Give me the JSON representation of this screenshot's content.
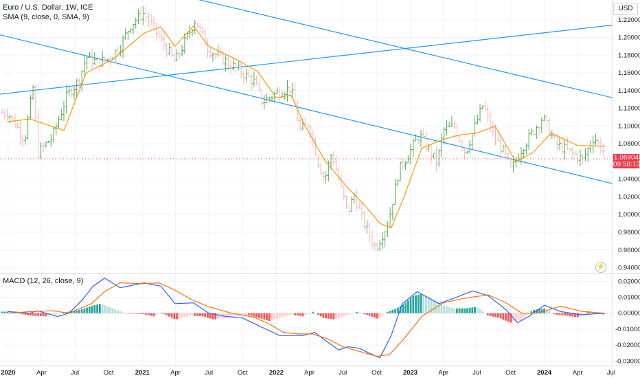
{
  "legend": {
    "symbol": "Euro / U.S. Dollar, 1W, ICE",
    "sma": "SMA (9, close, 0, SMA, 9)",
    "macd": "MACD (12, 26, close, 9)"
  },
  "price_axis": {
    "currency": "USD",
    "last_price": "1.06904",
    "countdown": "09:58:13"
  },
  "colors": {
    "up": "#26a69a",
    "up_bar": "#4caf50",
    "down": "#f7525f",
    "down_light": "#f8b4bb",
    "sma": "#ff9800",
    "trendline": "#2196f3",
    "macd_line": "#2962ff",
    "signal_line": "#ff6d00",
    "hist_up_strong": "#26a69a",
    "hist_up_weak": "#b2dfdb",
    "hist_down_strong": "#ff5252",
    "hist_down_weak": "#ffcdd2",
    "grid": "#f0f3fa",
    "price_tag": "#f23645"
  },
  "icons": {
    "alert": "lightning-icon"
  },
  "chart_data": [
    {
      "type": "ohlc",
      "title": "Euro / U.S. Dollar, 1W, ICE",
      "x_tick_labels": [
        "2020",
        "Apr",
        "Jul",
        "Oct",
        "2021",
        "Apr",
        "Jul",
        "Oct",
        "2022",
        "Apr",
        "Jul",
        "Oct",
        "2023",
        "Apr",
        "Jul",
        "Oct",
        "2024",
        "Apr",
        "Jul"
      ],
      "y_tick_labels": [
        "1.22000",
        "1.20000",
        "1.18000",
        "1.16000",
        "1.14000",
        "1.12000",
        "1.10000",
        "1.08000",
        "1.06000",
        "1.04000",
        "1.02000",
        "1.00000",
        "0.98000",
        "0.96000",
        "0.94000"
      ],
      "ylim": [
        0.935,
        1.24
      ],
      "series": [
        {
          "kind": "weekly_close",
          "x": [
            "2020-01-01",
            "2020-02-15",
            "2020-03-09",
            "2020-03-23",
            "2020-05-01",
            "2020-06-10",
            "2020-07-10",
            "2020-08-01",
            "2020-09-01",
            "2020-10-01",
            "2020-11-01",
            "2020-12-01",
            "2021-01-06",
            "2021-02-01",
            "2021-03-31",
            "2021-05-25",
            "2021-07-01",
            "2021-08-20",
            "2021-10-01",
            "2021-11-01",
            "2021-11-24",
            "2021-12-31",
            "2022-02-10",
            "2022-03-07",
            "2022-03-31",
            "2022-04-28",
            "2022-05-13",
            "2022-06-01",
            "2022-07-14",
            "2022-08-01",
            "2022-08-23",
            "2022-09-28",
            "2022-11-01",
            "2022-12-01",
            "2023-01-26",
            "2023-03-15",
            "2023-04-01",
            "2023-05-01",
            "2023-05-31",
            "2023-07-18",
            "2023-08-15",
            "2023-09-15",
            "2023-10-03",
            "2023-11-01",
            "2023-12-28",
            "2024-02-01",
            "2024-04-16",
            "2024-05-15",
            "2024-06-14"
          ],
          "y": [
            1.115,
            1.085,
            1.143,
            1.07,
            1.088,
            1.135,
            1.15,
            1.178,
            1.172,
            1.176,
            1.19,
            1.215,
            1.228,
            1.21,
            1.172,
            1.22,
            1.186,
            1.172,
            1.16,
            1.15,
            1.127,
            1.137,
            1.143,
            1.095,
            1.103,
            1.055,
            1.04,
            1.07,
            1.002,
            1.022,
            0.995,
            0.962,
            0.99,
            1.05,
            1.09,
            1.058,
            1.095,
            1.1,
            1.07,
            1.124,
            1.09,
            1.068,
            1.05,
            1.075,
            1.11,
            1.08,
            1.062,
            1.088,
            1.069
          ]
        },
        {
          "name": "SMA (9, close, 0, SMA, 9)",
          "x": [
            "2020-01-01",
            "2020-03-01",
            "2020-06-01",
            "2020-08-01",
            "2020-10-15",
            "2021-01-06",
            "2021-02-20",
            "2021-03-31",
            "2021-05-20",
            "2021-07-01",
            "2021-09-01",
            "2021-11-10",
            "2022-01-01",
            "2022-02-10",
            "2022-03-20",
            "2022-05-15",
            "2022-07-15",
            "2022-08-31",
            "2022-10-10",
            "2022-11-10",
            "2022-12-15",
            "2023-02-01",
            "2023-04-01",
            "2023-05-15",
            "2023-07-01",
            "2023-08-20",
            "2023-10-15",
            "2023-12-01",
            "2024-01-20",
            "2024-04-01",
            "2024-06-14"
          ],
          "y": [
            1.105,
            1.108,
            1.095,
            1.16,
            1.176,
            1.205,
            1.212,
            1.19,
            1.213,
            1.19,
            1.178,
            1.162,
            1.132,
            1.135,
            1.1,
            1.06,
            1.03,
            1.01,
            0.99,
            0.985,
            1.02,
            1.075,
            1.085,
            1.09,
            1.092,
            1.1,
            1.06,
            1.07,
            1.092,
            1.078,
            1.077
          ]
        }
      ],
      "trendlines": [
        {
          "from": [
            "2019-12-10",
            1.136
          ],
          "to": [
            "2024-07-05",
            1.214
          ]
        },
        {
          "from": [
            "2020-05-20",
            1.28
          ],
          "to": [
            "2024-07-05",
            1.132
          ]
        },
        {
          "from": [
            "2019-12-10",
            1.203
          ],
          "to": [
            "2024-07-05",
            1.035
          ]
        }
      ]
    },
    {
      "type": "bar",
      "title": "MACD (12, 26, close, 9)",
      "y_tick_labels": [
        "0.02000",
        "0.01000",
        "0.00000",
        "-0.01000",
        "-0.02000",
        "-0.03000"
      ],
      "ylim": [
        -0.032,
        0.024
      ],
      "series": [
        {
          "name": "MACD",
          "x": [
            "2020-01-01",
            "2020-03-01",
            "2020-03-20",
            "2020-05-15",
            "2020-06-15",
            "2020-07-20",
            "2020-08-20",
            "2020-09-20",
            "2020-11-01",
            "2021-01-06",
            "2021-02-20",
            "2021-03-31",
            "2021-05-20",
            "2021-07-01",
            "2021-08-15",
            "2021-10-01",
            "2021-11-15",
            "2022-01-10",
            "2022-03-15",
            "2022-04-15",
            "2022-05-20",
            "2022-06-20",
            "2022-07-15",
            "2022-08-15",
            "2022-09-20",
            "2022-10-10",
            "2022-11-10",
            "2022-12-10",
            "2023-01-20",
            "2023-03-20",
            "2023-05-01",
            "2023-06-20",
            "2023-08-01",
            "2023-09-20",
            "2023-10-20",
            "2023-11-20",
            "2024-01-01",
            "2024-02-15",
            "2024-04-10",
            "2024-06-14"
          ],
          "y": [
            0.001,
            0.0,
            0.0015,
            -0.002,
            0.0,
            0.008,
            0.017,
            0.022,
            0.016,
            0.019,
            0.017,
            0.006,
            0.0065,
            0.0,
            -0.002,
            -0.003,
            -0.008,
            -0.014,
            -0.014,
            -0.012,
            -0.018,
            -0.023,
            -0.021,
            -0.022,
            -0.026,
            -0.028,
            -0.014,
            0.006,
            0.0135,
            0.006,
            0.0095,
            0.014,
            0.011,
            0.002,
            -0.006,
            -0.002,
            0.005,
            0.001,
            -0.001,
            0.0
          ]
        },
        {
          "name": "Signal",
          "x": [
            "2020-01-01",
            "2020-03-01",
            "2020-05-01",
            "2020-06-15",
            "2020-08-15",
            "2020-09-20",
            "2020-11-01",
            "2021-01-01",
            "2021-02-15",
            "2021-03-31",
            "2021-05-15",
            "2021-07-01",
            "2021-09-01",
            "2021-11-01",
            "2021-12-15",
            "2022-01-20",
            "2022-03-01",
            "2022-04-10",
            "2022-05-20",
            "2022-07-01",
            "2022-08-01",
            "2022-09-01",
            "2022-10-01",
            "2022-11-05",
            "2022-12-15",
            "2023-02-01",
            "2023-04-01",
            "2023-06-01",
            "2023-08-01",
            "2023-09-15",
            "2023-11-01",
            "2023-12-15",
            "2024-02-15",
            "2024-04-15",
            "2024-06-14"
          ],
          "y": [
            0.0,
            0.001,
            0.0015,
            0.0,
            0.006,
            0.0135,
            0.019,
            0.0185,
            0.019,
            0.0145,
            0.0085,
            0.004,
            0.0,
            -0.0025,
            -0.007,
            -0.012,
            -0.013,
            -0.013,
            -0.016,
            -0.021,
            -0.023,
            -0.025,
            -0.027,
            -0.026,
            -0.016,
            -0.002,
            0.0065,
            0.0095,
            0.0115,
            0.007,
            0.0,
            0.0,
            0.0045,
            0.001,
            0.0
          ]
        },
        {
          "name": "Histogram",
          "x": [
            "2020-01-01",
            "2020-03-01",
            "2020-04-15",
            "2020-06-01",
            "2020-07-15",
            "2020-08-15",
            "2020-09-10",
            "2020-10-01",
            "2020-11-15",
            "2021-01-01",
            "2021-02-01",
            "2021-02-20",
            "2021-04-01",
            "2021-05-15",
            "2021-06-15",
            "2021-07-15",
            "2021-08-15",
            "2021-09-15",
            "2021-10-15",
            "2021-11-15",
            "2021-12-15",
            "2022-01-15",
            "2022-02-15",
            "2022-03-15",
            "2022-04-10",
            "2022-05-10",
            "2022-06-10",
            "2022-07-10",
            "2022-08-10",
            "2022-09-10",
            "2022-10-05",
            "2022-11-01",
            "2022-11-25",
            "2022-12-15",
            "2023-01-10",
            "2023-02-01",
            "2023-03-01",
            "2023-04-01",
            "2023-05-01",
            "2023-06-01",
            "2023-07-01",
            "2023-08-01",
            "2023-09-01",
            "2023-10-01",
            "2023-11-01",
            "2023-12-01",
            "2024-01-01",
            "2024-02-01",
            "2024-03-01",
            "2024-04-01",
            "2024-05-01",
            "2024-06-14"
          ],
          "y": [
            0.001,
            -0.0015,
            -0.002,
            0.0005,
            0.002,
            0.0045,
            0.006,
            0.004,
            0.0,
            -0.0005,
            -0.002,
            0.0005,
            -0.004,
            -0.0015,
            -0.002,
            -0.004,
            -0.003,
            -0.002,
            -0.001,
            -0.003,
            -0.005,
            -0.0025,
            -0.001,
            -0.002,
            0.001,
            -0.003,
            -0.004,
            -0.0015,
            0.001,
            -0.0015,
            -0.0035,
            0.001,
            0.003,
            0.006,
            0.011,
            0.012,
            0.009,
            0.005,
            0.003,
            0.003,
            0.004,
            -0.0015,
            -0.003,
            -0.006,
            -0.004,
            0.002,
            0.003,
            -0.001,
            -0.0015,
            -0.0025,
            0.0015,
            -0.001
          ]
        }
      ]
    }
  ]
}
